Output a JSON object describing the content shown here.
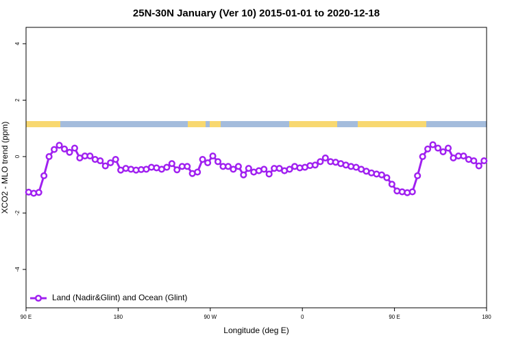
{
  "chart_data": {
    "type": "line",
    "title": "25N-30N January (Ver 10)   2015-01-01 to 2020-12-18",
    "x_label": "Longitude (deg E)",
    "y_label": "XCO2 - MLO trend (ppm)",
    "xlim": [
      90,
      540
    ],
    "ylim": [
      -5.36,
      4.58
    ],
    "xticks": [
      {
        "value": 90,
        "label": "90 E"
      },
      {
        "value": 180,
        "label": "180"
      },
      {
        "value": 270,
        "label": "90 W"
      },
      {
        "value": 360,
        "label": "0"
      },
      {
        "value": 450,
        "label": "90 E"
      },
      {
        "value": 540,
        "label": "180"
      }
    ],
    "yticks": [
      4,
      2,
      0,
      -2,
      -4
    ],
    "legend": "bottom-left",
    "x": [
      92.5,
      97.5,
      102.5,
      107.5,
      112.5,
      117.5,
      122.5,
      127.5,
      132.5,
      137.5,
      142.5,
      147.5,
      152.5,
      157.5,
      162.5,
      167.5,
      172.5,
      177.5,
      182.5,
      187.5,
      192.5,
      197.5,
      202.5,
      207.5,
      212.5,
      217.5,
      222.5,
      227.5,
      232.5,
      237.5,
      242.5,
      247.5,
      252.5,
      257.5,
      262.5,
      267.5,
      272.5,
      277.5,
      282.5,
      287.5,
      292.5,
      297.5,
      302.5,
      307.5,
      312.5,
      317.5,
      322.5,
      327.5,
      332.5,
      337.5,
      342.5,
      347.5,
      352.5,
      357.5,
      362.5,
      367.5,
      372.5,
      377.5,
      382.5,
      387.5,
      392.5,
      397.5,
      402.5,
      407.5,
      412.5,
      417.5,
      422.5,
      427.5,
      432.5,
      437.5,
      442.5,
      447.5,
      452.5,
      457.5,
      462.5,
      467.5,
      472.5,
      477.5,
      482.5,
      487.5,
      492.5,
      497.5,
      502.5,
      507.5,
      512.5,
      517.5,
      522.5,
      527.5,
      532.5,
      537.5
    ],
    "series": [
      {
        "name": "Land (Nadir&Glint) and Ocean (Glint)",
        "color": "#a020f0",
        "values": [
          -1.26,
          -1.3,
          -1.27,
          -0.68,
          0.0,
          0.25,
          0.4,
          0.27,
          0.15,
          0.3,
          -0.05,
          0.02,
          0.02,
          -0.1,
          -0.15,
          -0.33,
          -0.22,
          -0.1,
          -0.48,
          -0.42,
          -0.45,
          -0.48,
          -0.46,
          -0.45,
          -0.38,
          -0.4,
          -0.45,
          -0.38,
          -0.25,
          -0.47,
          -0.35,
          -0.35,
          -0.6,
          -0.55,
          -0.1,
          -0.22,
          0.02,
          -0.18,
          -0.35,
          -0.35,
          -0.45,
          -0.35,
          -0.65,
          -0.42,
          -0.55,
          -0.5,
          -0.45,
          -0.62,
          -0.42,
          -0.42,
          -0.5,
          -0.45,
          -0.35,
          -0.4,
          -0.38,
          -0.32,
          -0.3,
          -0.18,
          -0.05,
          -0.18,
          -0.2,
          -0.25,
          -0.3,
          -0.35,
          -0.38,
          -0.45,
          -0.52,
          -0.58,
          -0.62,
          -0.65,
          -0.75,
          -0.98,
          -1.22,
          -1.25,
          -1.28,
          -1.25,
          -0.68,
          0.0,
          0.27,
          0.42,
          0.3,
          0.17,
          0.3,
          -0.05,
          0.02,
          0.02,
          -0.1,
          -0.15,
          -0.33,
          -0.15
        ]
      }
    ]
  }
}
